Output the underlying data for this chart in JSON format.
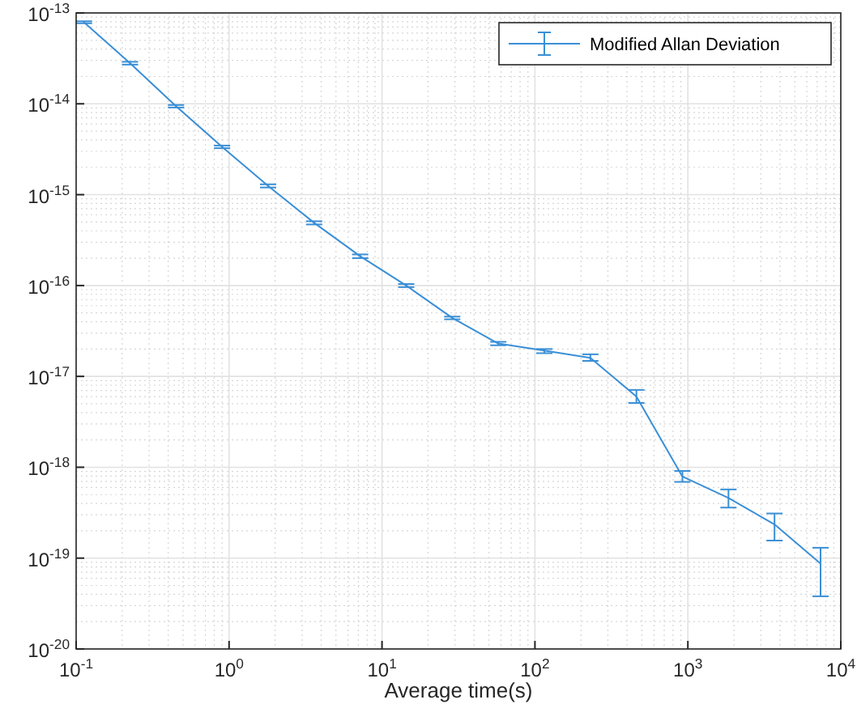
{
  "chart_data": {
    "type": "line",
    "xlabel": "Average time(s)",
    "log": "xy",
    "grid": true,
    "legend": "top right",
    "marker": "none",
    "line_style": "solid",
    "x": [
      0.1125,
      0.225,
      0.45,
      0.9,
      1.8,
      3.6,
      7.2,
      14.4,
      28.8,
      57.6,
      115.2,
      230.4,
      460.8,
      921.6,
      1843,
      3686,
      7373
    ],
    "series": [
      {
        "name": "Modified Allan Deviation",
        "color": "#3a8fd6",
        "values": [
          7.9e-14,
          2.8e-14,
          9.4e-15,
          3.36e-15,
          1.25e-15,
          4.9e-16,
          2.1e-16,
          1e-16,
          4.4e-17,
          2.3e-17,
          1.92e-17,
          1.6e-17,
          6e-18,
          7.9e-19,
          4.6e-19,
          2.35e-19,
          8.7e-20
        ],
        "errors": [
          [
            7.7e-14,
            8.1e-14
          ],
          [
            2.7e-14,
            2.9e-14
          ],
          [
            9.1e-15,
            9.7e-15
          ],
          [
            3.25e-15,
            3.47e-15
          ],
          [
            1.2e-15,
            1.3e-15
          ],
          [
            4.7e-16,
            5.1e-16
          ],
          [
            2e-16,
            2.2e-16
          ],
          [
            9.6e-17,
            1.04e-16
          ],
          [
            4.25e-17,
            4.55e-17
          ],
          [
            2.2e-17,
            2.4e-17
          ],
          [
            1.8e-17,
            2e-17
          ],
          [
            1.48e-17,
            1.75e-17
          ],
          [
            5.1e-18,
            7.1e-18
          ],
          [
            6.9e-19,
            9.1e-19
          ],
          [
            3.6e-19,
            5.7e-19
          ],
          [
            1.56e-19,
            3.1e-19
          ],
          [
            3.8e-20,
            1.3e-19
          ]
        ]
      }
    ],
    "xlim": [
      0.1,
      10000
    ],
    "ylim": [
      1e-20,
      1e-13
    ],
    "xticks": [
      {
        "value": 0.1,
        "label": "10$^{-1}$"
      },
      {
        "value": 1,
        "label": "10$^{0}$"
      },
      {
        "value": 10,
        "label": "10$^{1}$"
      },
      {
        "value": 100,
        "label": "10$^{2}$"
      },
      {
        "value": 1000,
        "label": "10$^{3}$"
      },
      {
        "value": 10000,
        "label": "10$^{4}$"
      }
    ],
    "yticks": [
      {
        "value": 1e-20,
        "label": "10$^{-20}$"
      },
      {
        "value": 1e-19,
        "label": "10$^{-19}$"
      },
      {
        "value": 1e-18,
        "label": "10$^{-18}$"
      },
      {
        "value": 1e-17,
        "label": "10$^{-17}$"
      },
      {
        "value": 1e-16,
        "label": "10$^{-16}$"
      },
      {
        "value": 1e-15,
        "label": "10$^{-15}$"
      },
      {
        "value": 1e-14,
        "label": "10$^{-14}$"
      },
      {
        "value": 1e-13,
        "label": "10$^{-13}$"
      }
    ]
  }
}
